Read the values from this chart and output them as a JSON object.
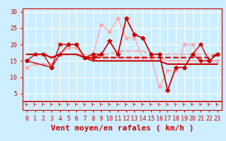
{
  "xlabel": "Vent moyen/en rafales ( km/h )",
  "bg_color": "#cceeff",
  "grid_color": "#ffffff",
  "xlim": [
    -0.5,
    23.5
  ],
  "ylim": [
    0,
    31
  ],
  "yticks": [
    5,
    10,
    15,
    20,
    25,
    30
  ],
  "xticks": [
    0,
    1,
    2,
    3,
    4,
    5,
    6,
    7,
    8,
    9,
    10,
    11,
    12,
    13,
    14,
    15,
    16,
    17,
    18,
    19,
    20,
    21,
    22,
    23
  ],
  "series": [
    {
      "x": [
        0,
        1,
        2,
        3,
        4,
        5,
        6,
        7,
        8,
        9,
        10,
        11,
        12,
        13,
        14,
        15,
        16,
        17,
        18,
        19,
        20,
        21,
        22,
        23
      ],
      "y": [
        15,
        17,
        17,
        13,
        20,
        20,
        20,
        16,
        17,
        17,
        21,
        17,
        28,
        23,
        22,
        17,
        17,
        6,
        13,
        13,
        17,
        20,
        15,
        17
      ],
      "color": "#cc0000",
      "lw": 1.0,
      "marker": "*",
      "ms": 4,
      "zorder": 5
    },
    {
      "x": [
        0,
        1,
        2,
        3,
        4,
        5,
        6,
        7,
        8,
        9,
        10,
        11,
        12,
        13,
        14,
        15,
        16,
        17,
        18,
        19,
        20,
        21,
        22,
        23
      ],
      "y": [
        17,
        17,
        17,
        16,
        17,
        17,
        17,
        16,
        16,
        16,
        16,
        16,
        16,
        16,
        16,
        16,
        16,
        16,
        16,
        16,
        16,
        16,
        16,
        17
      ],
      "color": "#cc0000",
      "lw": 1.5,
      "marker": null,
      "ms": 0,
      "zorder": 4,
      "linestyle": "--"
    },
    {
      "x": [
        0,
        1,
        2,
        3,
        4,
        5,
        6,
        7,
        8,
        9,
        10,
        11,
        12,
        13,
        14,
        15,
        16,
        17,
        18,
        19,
        20,
        21,
        22,
        23
      ],
      "y": [
        17,
        17,
        17,
        16,
        17,
        17,
        17,
        16,
        15,
        15,
        15,
        15,
        15,
        15,
        15,
        15,
        15,
        14,
        14,
        14,
        14,
        14,
        14,
        14
      ],
      "color": "#cc0000",
      "lw": 1.5,
      "marker": null,
      "ms": 0,
      "zorder": 4,
      "linestyle": "-"
    },
    {
      "x": [
        0,
        3,
        4,
        5,
        6,
        7,
        8,
        9,
        10,
        11,
        12,
        13,
        14,
        15,
        16,
        17,
        18,
        19,
        20,
        21,
        22,
        23
      ],
      "y": [
        15,
        13,
        17,
        20,
        20,
        16,
        16,
        17,
        21,
        17,
        28,
        23,
        22,
        17,
        17,
        6,
        13,
        13,
        17,
        15,
        15,
        17
      ],
      "color": "#cc0000",
      "lw": 1.0,
      "marker": "D",
      "ms": 2.5,
      "zorder": 5,
      "linestyle": "-"
    },
    {
      "x": [
        0,
        1,
        2,
        3,
        4,
        5,
        6,
        7,
        8,
        9,
        10,
        11,
        12,
        13,
        14,
        15,
        16,
        17,
        18,
        19,
        20,
        21,
        22,
        23
      ],
      "y": [
        13,
        14,
        14,
        14,
        17,
        19,
        19,
        16,
        17,
        26,
        24,
        28,
        22,
        22,
        16,
        16,
        7,
        12,
        12,
        20,
        20,
        15,
        15,
        15
      ],
      "color": "#ffaaaa",
      "lw": 1.0,
      "marker": "D",
      "ms": 2.5,
      "zorder": 3,
      "linestyle": "-"
    },
    {
      "x": [
        0,
        1,
        2,
        3,
        4,
        5,
        6,
        7,
        8,
        9,
        10,
        11,
        12,
        13,
        14,
        15,
        16,
        17,
        18,
        19,
        20,
        21,
        22,
        23
      ],
      "y": [
        17,
        17,
        17,
        16,
        17,
        17,
        17,
        17,
        17,
        17,
        17,
        18,
        18,
        18,
        18,
        17,
        17,
        17,
        17,
        17,
        17,
        17,
        17,
        17
      ],
      "color": "#ffaaaa",
      "lw": 1.5,
      "marker": null,
      "ms": 0,
      "zorder": 2,
      "linestyle": "--"
    },
    {
      "x": [
        0,
        1,
        2,
        3,
        4,
        5,
        6,
        7,
        8,
        9,
        10,
        11,
        12,
        13,
        14,
        15,
        16,
        17,
        18,
        19,
        20,
        21,
        22,
        23
      ],
      "y": [
        17,
        17,
        17,
        16,
        17,
        17,
        17,
        16,
        16,
        16,
        16,
        16,
        16,
        16,
        16,
        16,
        16,
        15,
        15,
        15,
        15,
        15,
        15,
        15
      ],
      "color": "#ffaaaa",
      "lw": 1.5,
      "marker": null,
      "ms": 0,
      "zorder": 2,
      "linestyle": "-"
    }
  ],
  "axis_color": "#cc0000",
  "tick_color": "#cc0000",
  "tick_fontsize": 6,
  "xlabel_fontsize": 8
}
